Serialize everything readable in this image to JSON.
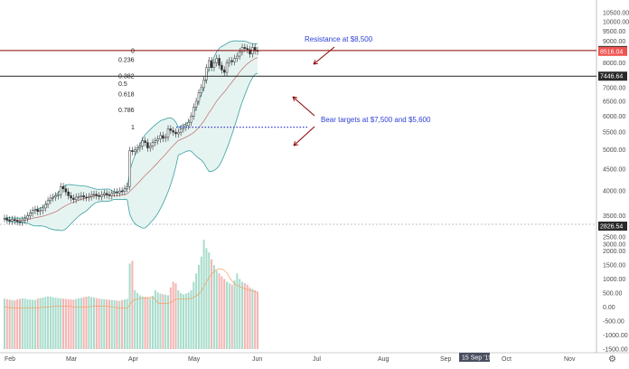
{
  "chart_data": [
    {
      "type": "candlestick",
      "scale": "log",
      "ylim": [
        3000,
        10500
      ],
      "y_ticks": [
        "10500.00",
        "10000.00",
        "9500.00",
        "9000.00",
        "8500.00",
        "8000.00",
        "7500.00",
        "7000.00",
        "6500.00",
        "6000.00",
        "5500.00",
        "5000.00",
        "4500.00",
        "4000.00",
        "3500.00",
        "3000.00"
      ],
      "x_ticks": [
        "Feb",
        "Mar",
        "Apr",
        "May",
        "Jun",
        "Jul",
        "Aug",
        "Sep",
        "Oct",
        "Nov"
      ],
      "x_cursor_label": "15 Sep '19",
      "price_badges": [
        {
          "label": "8555.25",
          "value": 8555.25,
          "color": "#2a2a2a"
        },
        {
          "label": "8516.04",
          "value": 8516.04,
          "color": "#ef5350"
        },
        {
          "label": "7446.64",
          "value": 7446.64,
          "color": "#2a2a2a"
        },
        {
          "label": "2826.54",
          "value": 2826.54,
          "color": "#2a2a2a"
        }
      ],
      "fib_levels": [
        {
          "label": "0",
          "value": 8555
        },
        {
          "label": "0.236",
          "value": 8150
        },
        {
          "label": "0.382",
          "value": 7446
        },
        {
          "label": "0.5",
          "value": 7150
        },
        {
          "label": "0.618",
          "value": 6760
        },
        {
          "label": "0.786",
          "value": 6200
        },
        {
          "label": "1",
          "value": 5650
        }
      ],
      "annotations": {
        "resistance": "Resistance at $8,500",
        "bear_targets": "Bear targets at $7,500 and $5,600"
      },
      "dotted_support": 5650,
      "candles_close": [
        3450,
        3420,
        3400,
        3430,
        3410,
        3390,
        3380,
        3420,
        3450,
        3500,
        3550,
        3600,
        3620,
        3580,
        3600,
        3650,
        3720,
        3800,
        3850,
        3870,
        3900,
        3920,
        4100,
        4050,
        3980,
        3900,
        3850,
        3820,
        3870,
        3880,
        3900,
        3870,
        3860,
        3880,
        3920,
        3930,
        3900,
        3880,
        3920,
        3950,
        3920,
        3900,
        3950,
        3980,
        3960,
        4000,
        3990,
        4050,
        4100,
        4980,
        4950,
        5000,
        5050,
        5100,
        5250,
        5200,
        5050,
        5100,
        5200,
        5250,
        5300,
        5400,
        5320,
        5350,
        5600,
        5550,
        5500,
        5450,
        5500,
        5600,
        5650,
        5700,
        5800,
        6000,
        6300,
        6500,
        6800,
        7000,
        7300,
        7800,
        8100,
        7800,
        8000,
        8200,
        7900,
        7700,
        7600,
        8000,
        8100,
        8050,
        8200,
        8300,
        8500,
        8700,
        8650,
        8600,
        8400,
        8700,
        8550,
        8516
      ],
      "volume": [
        300,
        280,
        260,
        250,
        240,
        270,
        290,
        310,
        300,
        280,
        270,
        260,
        250,
        300,
        320,
        340,
        360,
        380,
        370,
        350,
        330,
        320,
        310,
        300,
        290,
        280,
        270,
        260,
        290,
        310,
        330,
        350,
        370,
        390,
        360,
        340,
        320,
        300,
        290,
        280,
        270,
        260,
        250,
        240,
        230,
        220,
        250,
        270,
        290,
        1550,
        1650,
        600,
        500,
        420,
        380,
        360,
        340,
        320,
        400,
        600,
        520,
        480,
        460,
        440,
        420,
        700,
        900,
        850,
        600,
        500,
        450,
        480,
        520,
        600,
        900,
        1200,
        1500,
        1800,
        2400,
        2100,
        1950,
        1700,
        1500,
        1300,
        1200,
        1100,
        1000,
        900,
        850,
        800,
        950,
        1200,
        1000,
        900,
        850,
        800,
        700,
        650,
        600,
        550
      ],
      "volume_ticks": [
        "2500.00",
        "2000.00",
        "1500.00",
        "1000.00",
        "500.00",
        "0.00",
        "-500.00",
        "-1000.00",
        "-1500.00"
      ]
    }
  ]
}
